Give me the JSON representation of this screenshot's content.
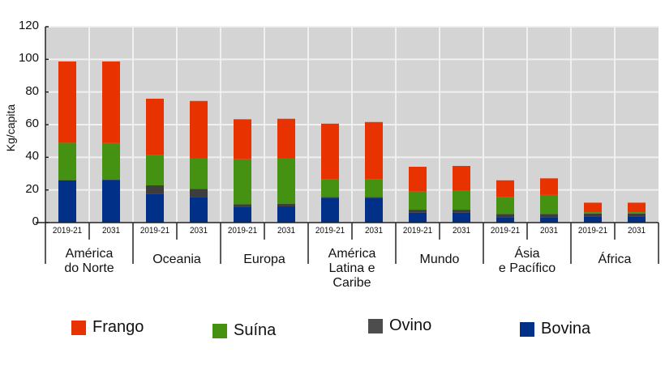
{
  "chart_data": {
    "type": "bar",
    "stacked": true,
    "title": "",
    "xlabel": "",
    "ylabel": "Kg/capita",
    "ylim": [
      0,
      120
    ],
    "yticks": [
      0,
      20,
      40,
      60,
      80,
      100,
      120
    ],
    "grid": true,
    "legend_position": "bottom",
    "groups": [
      "América do Norte",
      "Oceania",
      "Europa",
      "América Latina e Caribe",
      "Mundo",
      "Ásia e Pacífico",
      "África"
    ],
    "group_label_lines": [
      [
        "América",
        "do Norte"
      ],
      [
        "Oceania"
      ],
      [
        "Europa"
      ],
      [
        "América",
        "Latina e",
        "Caribe"
      ],
      [
        "Mundo"
      ],
      [
        "Ásia",
        "e Pacífico"
      ],
      [
        "África"
      ]
    ],
    "categories": [
      "2019-21",
      "2031",
      "2019-21",
      "2031",
      "2019-21",
      "2031",
      "2019-21",
      "2031",
      "2019-21",
      "2031",
      "2019-21",
      "2031",
      "2019-21",
      "2031"
    ],
    "series": [
      {
        "name": "Bovina",
        "color": "#003087",
        "values": [
          25.8,
          26.1,
          17.7,
          15.7,
          9.8,
          9.9,
          15.2,
          15.2,
          6.1,
          6.1,
          3.3,
          3.3,
          3.5,
          3.5
        ]
      },
      {
        "name": "Ovino",
        "color": "#3d3d3d",
        "values": [
          0.2,
          0.2,
          5.1,
          5.0,
          1.4,
          1.5,
          0.5,
          0.5,
          1.8,
          1.8,
          2.0,
          2.0,
          2.0,
          2.0
        ]
      },
      {
        "name": "Suína",
        "color": "#459112",
        "values": [
          22.9,
          22.4,
          18.5,
          18.5,
          27.6,
          27.8,
          10.7,
          10.9,
          11.1,
          11.6,
          10.4,
          11.6,
          0.9,
          0.9
        ]
      },
      {
        "name": "Frango",
        "color": "#e83300",
        "values": [
          49.8,
          50.0,
          34.6,
          35.3,
          24.5,
          24.4,
          34.2,
          35.0,
          15.2,
          15.2,
          10.2,
          10.2,
          5.8,
          5.8
        ]
      }
    ],
    "totals": [
      98.7,
      98.7,
      75.9,
      74.5,
      63.3,
      63.6,
      60.6,
      61.6,
      34.2,
      34.7,
      25.9,
      27.1,
      12.2,
      12.2
    ]
  },
  "legend": [
    {
      "label": "Frango",
      "color": "#e83300"
    },
    {
      "label": "Suína",
      "color": "#459112"
    },
    {
      "label": "Ovino",
      "color": "#4d4d4f"
    },
    {
      "label": "Bovina",
      "color": "#003087"
    }
  ],
  "colors": {
    "plot_background": "#d4d4d4",
    "gridline": "#f0f0f0",
    "axis": "#222222"
  }
}
